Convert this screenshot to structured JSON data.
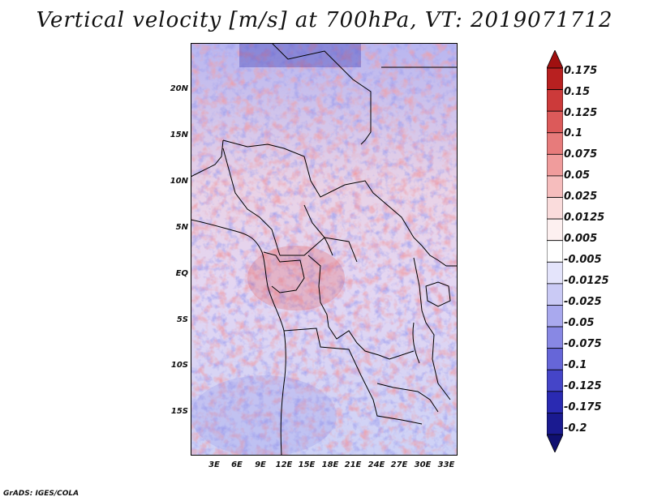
{
  "title": "Vertical velocity [m/s] at 700hPa, VT: 2019071712",
  "footer": "GrADS: IGES/COLA",
  "map": {
    "variable": "Vertical velocity",
    "units": "m/s",
    "level": "700hPa",
    "valid_time": "2019071712",
    "lat_labels": [
      "20N",
      "15N",
      "10N",
      "5N",
      "EQ",
      "5S",
      "10S",
      "15S"
    ],
    "lon_labels": [
      "3E",
      "6E",
      "9E",
      "12E",
      "15E",
      "18E",
      "21E",
      "24E",
      "27E",
      "30E",
      "33E"
    ]
  },
  "colorbar": {
    "labels": [
      "0.175",
      "0.15",
      "0.125",
      "0.1",
      "0.075",
      "0.05",
      "0.025",
      "0.0125",
      "0.005",
      "-0.005",
      "-0.0125",
      "-0.025",
      "-0.05",
      "-0.075",
      "-0.1",
      "-0.125",
      "-0.175",
      "-0.2"
    ],
    "colors": [
      "#a01010",
      "#b82020",
      "#cc3a3a",
      "#dc5a5a",
      "#e77b7b",
      "#f09c9c",
      "#f6bdbd",
      "#fadcdc",
      "#fdf0f0",
      "#ffffff",
      "#e4e4fb",
      "#cacaf5",
      "#a9a9ee",
      "#8888e4",
      "#6666d8",
      "#4545c8",
      "#2a2ab2",
      "#1a1a90",
      "#101070"
    ]
  }
}
